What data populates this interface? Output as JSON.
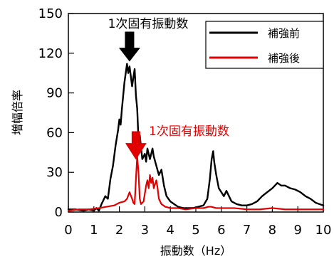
{
  "chart_data": {
    "type": "line",
    "title": "",
    "xlabel": "振動数（Hz）",
    "ylabel": "増幅倍率",
    "xlim": [
      0,
      10
    ],
    "ylim": [
      0,
      150
    ],
    "x_ticks": [
      "0",
      "1",
      "2",
      "3",
      "4",
      "5",
      "6",
      "7",
      "8",
      "9",
      "10"
    ],
    "y_ticks": [
      "0",
      "30",
      "60",
      "90",
      "120",
      "150"
    ],
    "grid": false,
    "legend_position": "top-right",
    "colors": {
      "before": "#000000",
      "after": "#e00000"
    },
    "series": [
      {
        "name": "補強前",
        "color": "#000000",
        "points": [
          [
            0.0,
            2
          ],
          [
            0.3,
            2
          ],
          [
            0.6,
            1
          ],
          [
            0.8,
            2
          ],
          [
            1.0,
            1
          ],
          [
            1.1,
            3
          ],
          [
            1.2,
            1
          ],
          [
            1.3,
            6
          ],
          [
            1.45,
            12
          ],
          [
            1.55,
            10
          ],
          [
            1.65,
            25
          ],
          [
            1.75,
            35
          ],
          [
            1.85,
            50
          ],
          [
            1.95,
            62
          ],
          [
            2.0,
            70
          ],
          [
            2.05,
            66
          ],
          [
            2.1,
            78
          ],
          [
            2.15,
            88
          ],
          [
            2.2,
            98
          ],
          [
            2.3,
            112
          ],
          [
            2.35,
            105
          ],
          [
            2.4,
            110
          ],
          [
            2.5,
            95
          ],
          [
            2.55,
            102
          ],
          [
            2.6,
            108
          ],
          [
            2.65,
            88
          ],
          [
            2.7,
            78
          ],
          [
            2.75,
            55
          ],
          [
            2.8,
            58
          ],
          [
            2.9,
            40
          ],
          [
            3.0,
            44
          ],
          [
            3.05,
            38
          ],
          [
            3.1,
            48
          ],
          [
            3.2,
            40
          ],
          [
            3.3,
            48
          ],
          [
            3.35,
            42
          ],
          [
            3.45,
            35
          ],
          [
            3.55,
            28
          ],
          [
            3.65,
            32
          ],
          [
            3.75,
            20
          ],
          [
            3.85,
            12
          ],
          [
            4.0,
            8
          ],
          [
            4.15,
            6
          ],
          [
            4.3,
            4
          ],
          [
            4.5,
            3
          ],
          [
            4.7,
            3
          ],
          [
            4.9,
            3
          ],
          [
            5.1,
            4
          ],
          [
            5.3,
            5
          ],
          [
            5.45,
            10
          ],
          [
            5.55,
            25
          ],
          [
            5.62,
            40
          ],
          [
            5.68,
            46
          ],
          [
            5.72,
            38
          ],
          [
            5.8,
            28
          ],
          [
            5.9,
            18
          ],
          [
            6.0,
            15
          ],
          [
            6.1,
            12
          ],
          [
            6.2,
            16
          ],
          [
            6.3,
            12
          ],
          [
            6.4,
            8
          ],
          [
            6.6,
            6
          ],
          [
            6.8,
            5
          ],
          [
            7.0,
            5
          ],
          [
            7.2,
            6
          ],
          [
            7.4,
            8
          ],
          [
            7.6,
            12
          ],
          [
            7.8,
            15
          ],
          [
            8.0,
            18
          ],
          [
            8.2,
            22
          ],
          [
            8.35,
            20
          ],
          [
            8.5,
            20
          ],
          [
            8.7,
            18
          ],
          [
            8.9,
            17
          ],
          [
            9.1,
            15
          ],
          [
            9.3,
            12
          ],
          [
            9.5,
            10
          ],
          [
            9.7,
            7
          ],
          [
            10.0,
            5
          ]
        ]
      },
      {
        "name": "補強後",
        "color": "#e00000",
        "points": [
          [
            0.0,
            1
          ],
          [
            0.4,
            2
          ],
          [
            0.8,
            2
          ],
          [
            1.2,
            3
          ],
          [
            1.5,
            4
          ],
          [
            1.8,
            5
          ],
          [
            2.0,
            7
          ],
          [
            2.2,
            8
          ],
          [
            2.3,
            10
          ],
          [
            2.4,
            15
          ],
          [
            2.5,
            10
          ],
          [
            2.55,
            7
          ],
          [
            2.6,
            6
          ],
          [
            2.65,
            25
          ],
          [
            2.7,
            42
          ],
          [
            2.75,
            30
          ],
          [
            2.8,
            10
          ],
          [
            2.85,
            6
          ],
          [
            2.95,
            8
          ],
          [
            3.05,
            20
          ],
          [
            3.1,
            24
          ],
          [
            3.15,
            18
          ],
          [
            3.2,
            28
          ],
          [
            3.25,
            22
          ],
          [
            3.3,
            26
          ],
          [
            3.35,
            18
          ],
          [
            3.45,
            24
          ],
          [
            3.5,
            18
          ],
          [
            3.55,
            10
          ],
          [
            3.65,
            6
          ],
          [
            3.8,
            4
          ],
          [
            4.0,
            3
          ],
          [
            4.3,
            3
          ],
          [
            4.6,
            2
          ],
          [
            5.0,
            3
          ],
          [
            5.3,
            3
          ],
          [
            5.5,
            4
          ],
          [
            5.6,
            4
          ],
          [
            5.8,
            3
          ],
          [
            6.0,
            3
          ],
          [
            6.5,
            3
          ],
          [
            7.0,
            2
          ],
          [
            7.5,
            2
          ],
          [
            8.0,
            3
          ],
          [
            8.5,
            2
          ],
          [
            9.0,
            2
          ],
          [
            9.5,
            2
          ],
          [
            10.0,
            2
          ]
        ]
      }
    ],
    "annotations": [
      {
        "text": "1次固有振動数",
        "color": "#000000",
        "x": 2.4,
        "y": 112
      },
      {
        "text": "1次固有振動数",
        "color": "#e00000",
        "x": 2.65,
        "y": 40
      }
    ]
  }
}
